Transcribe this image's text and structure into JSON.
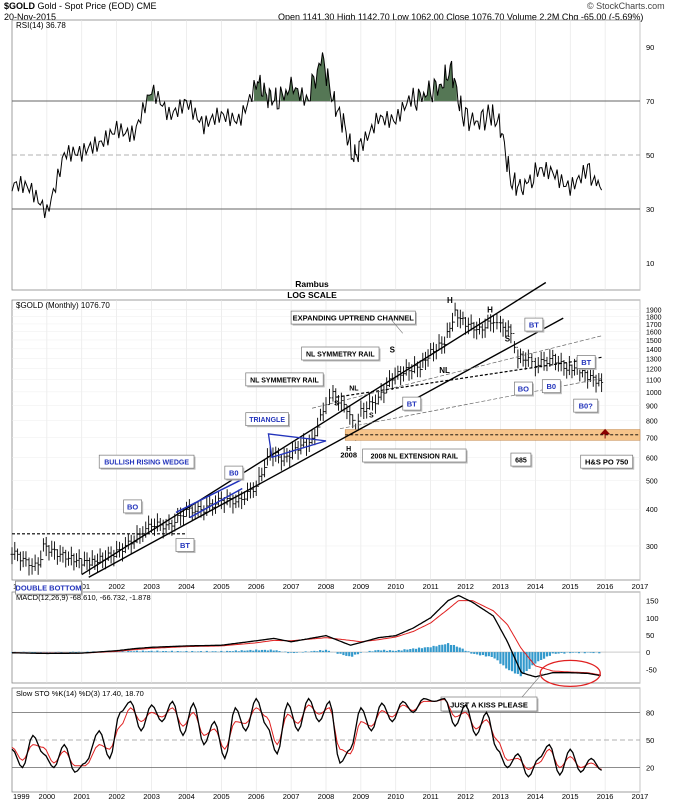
{
  "header": {
    "symbol": "$GOLD",
    "description": "Gold - Spot Price (EOD)  CME",
    "date": "20-Nov-2015",
    "quote": "Open 1141.30  High 1142.70  Low 1062.00  Close 1076.70  Volume 2.2M  Chg -65.00 (-5.69%)",
    "quote_arrow": "▼",
    "brand": "© StockCharts.com"
  },
  "colors": {
    "price_up": "#000000",
    "rsi_fill": "#557755",
    "macd_line": "#000000",
    "signal_line": "#e02020",
    "histogram": "#3399cc",
    "annotation_blue": "#2233bb",
    "target_zone": "#f6c48a",
    "target_arrow": "#8b0000"
  },
  "chart_data": [
    {
      "type": "line",
      "panel": "rsi",
      "legend": "RSI(14) 36.78",
      "ylim": [
        0,
        100
      ],
      "yticks": [
        10,
        30,
        50,
        70,
        90
      ],
      "reference_lines": [
        30,
        50,
        70
      ],
      "x": [
        1999.0,
        1999.5,
        2000.0,
        2000.5,
        2001.0,
        2001.5,
        2002.0,
        2002.5,
        2003.0,
        2003.5,
        2004.0,
        2004.5,
        2005.0,
        2005.5,
        2006.0,
        2006.3,
        2006.6,
        2007.0,
        2007.5,
        2007.9,
        2008.2,
        2008.5,
        2008.8,
        2009.0,
        2009.5,
        2010.0,
        2010.5,
        2010.9,
        2011.3,
        2011.6,
        2011.9,
        2012.3,
        2012.7,
        2013.0,
        2013.3,
        2013.6,
        2014.0,
        2014.5,
        2015.0,
        2015.5,
        2015.9
      ],
      "series": [
        {
          "name": "RSI(14)",
          "values": [
            38,
            36,
            30,
            52,
            49,
            53,
            62,
            58,
            72,
            65,
            72,
            60,
            63,
            64,
            78,
            72,
            70,
            75,
            72,
            86,
            70,
            62,
            48,
            54,
            66,
            62,
            70,
            73,
            76,
            82,
            65,
            62,
            65,
            61,
            40,
            38,
            42,
            44,
            40,
            44,
            37
          ]
        }
      ]
    },
    {
      "type": "line",
      "panel": "price",
      "legend": "$GOLD (Monthly) 1076.70",
      "title": "Rambus",
      "subtitle": "LOG SCALE",
      "scale": "log",
      "ylim": [
        230,
        2050
      ],
      "yticks": [
        300,
        400,
        500,
        600,
        700,
        800,
        900,
        1000,
        1100,
        1200,
        1300,
        1400,
        1500,
        1600,
        1700,
        1800,
        1900
      ],
      "x_tick_labels": [
        "1999",
        "2000",
        "2001",
        "2002",
        "2003",
        "2004",
        "2005",
        "2006",
        "2007",
        "2008",
        "2009",
        "2010",
        "2011",
        "2012",
        "2013",
        "2014",
        "2015",
        "2016",
        "2017"
      ],
      "x": [
        1999.0,
        1999.4,
        1999.75,
        1999.9,
        2000.3,
        2000.7,
        2001.0,
        2001.3,
        2001.6,
        2002.0,
        2002.5,
        2003.0,
        2003.5,
        2004.0,
        2004.5,
        2005.0,
        2005.5,
        2006.0,
        2006.4,
        2006.8,
        2007.2,
        2007.6,
        2008.0,
        2008.2,
        2008.6,
        2008.85,
        2009.0,
        2009.5,
        2009.9,
        2010.3,
        2010.7,
        2011.0,
        2011.4,
        2011.7,
        2012.0,
        2012.4,
        2012.8,
        2013.0,
        2013.3,
        2013.5,
        2013.8,
        2014.0,
        2014.5,
        2014.9,
        2015.2,
        2015.5,
        2015.9
      ],
      "series": [
        {
          "name": "$GOLD",
          "values": [
            288,
            265,
            255,
            300,
            283,
            272,
            265,
            265,
            272,
            285,
            315,
            355,
            350,
            395,
            400,
            430,
            425,
            480,
            620,
            590,
            650,
            680,
            920,
            980,
            880,
            740,
            860,
            950,
            1120,
            1180,
            1220,
            1360,
            1480,
            1850,
            1710,
            1620,
            1750,
            1680,
            1600,
            1320,
            1280,
            1240,
            1300,
            1200,
            1210,
            1130,
            1076
          ]
        }
      ],
      "annotations": [
        "EXPANDING UPTREND CHANNEL",
        "NL SYMMETRY RAIL",
        "NL SYMMETRY RAIL",
        "TRIANGLE",
        "BULLISH RISING WEDGE",
        "BO",
        "B0",
        "BT",
        "BT",
        "BT",
        "BO",
        "B0",
        "BT",
        "B0?",
        "DOUBLE BOTTOM",
        "H",
        "H",
        "S",
        "S",
        "S",
        "NL",
        "NL",
        "S",
        "H",
        "2008",
        "2008 NL EXTENSION RAIL",
        "685",
        "H&S PO 750"
      ]
    },
    {
      "type": "line",
      "panel": "macd",
      "legend": "MACD(12,26,9) -68.610, -66.732, -1.878",
      "yticks": [
        -50,
        0,
        50,
        100,
        150
      ],
      "x": [
        1999.0,
        2000.0,
        2001.0,
        2002.0,
        2002.5,
        2003.0,
        2004.0,
        2005.0,
        2006.0,
        2006.5,
        2007.0,
        2008.0,
        2008.7,
        2009.0,
        2009.5,
        2010.0,
        2010.5,
        2011.0,
        2011.5,
        2011.8,
        2012.2,
        2012.8,
        2013.2,
        2013.6,
        2014.0,
        2014.5,
        2015.0,
        2015.5,
        2015.9
      ],
      "series": [
        {
          "name": "MACD",
          "values": [
            -2,
            -4,
            -3,
            4,
            10,
            14,
            18,
            20,
            33,
            40,
            30,
            48,
            20,
            28,
            42,
            48,
            70,
            100,
            150,
            165,
            145,
            105,
            30,
            -60,
            -72,
            -60,
            -60,
            -62,
            -69
          ]
        },
        {
          "name": "Signal",
          "values": [
            -2,
            -3,
            -3,
            2,
            7,
            11,
            16,
            18,
            27,
            34,
            33,
            42,
            34,
            30,
            36,
            44,
            60,
            85,
            125,
            150,
            150,
            120,
            80,
            10,
            -40,
            -55,
            -58,
            -60,
            -67
          ]
        }
      ],
      "histogram": [
        0,
        -1,
        0,
        2,
        3,
        3,
        2,
        2,
        6,
        6,
        -3,
        6,
        -14,
        -2,
        6,
        4,
        10,
        15,
        25,
        15,
        -5,
        -15,
        -50,
        -70,
        -32,
        -5,
        -2,
        -2,
        -2
      ],
      "callout": "JUST A KISS PLEASE"
    },
    {
      "type": "line",
      "panel": "stochastic",
      "legend": "Slow STO %K(14) %D(3) 17.40, 18.70",
      "ylim": [
        0,
        100
      ],
      "yticks": [
        20,
        50,
        80
      ],
      "reference_lines": [
        20,
        50,
        80
      ],
      "x_tick_labels": [
        "1999",
        "2000",
        "2001",
        "2002",
        "2003",
        "2004",
        "2005",
        "2006",
        "2007",
        "2008",
        "2009",
        "2010",
        "2011",
        "2012",
        "2013",
        "2014",
        "2015",
        "2016",
        "2017"
      ],
      "x": [
        1999.0,
        1999.3,
        1999.6,
        1999.9,
        2000.2,
        2000.5,
        2000.8,
        2001.1,
        2001.5,
        2001.8,
        2002.1,
        2002.4,
        2002.7,
        2003.0,
        2003.3,
        2003.6,
        2003.9,
        2004.2,
        2004.5,
        2004.8,
        2005.1,
        2005.4,
        2005.7,
        2006.0,
        2006.3,
        2006.6,
        2006.9,
        2007.2,
        2007.5,
        2007.8,
        2008.1,
        2008.4,
        2008.7,
        2009.0,
        2009.3,
        2009.6,
        2009.9,
        2010.2,
        2010.5,
        2010.8,
        2011.1,
        2011.4,
        2011.7,
        2012.0,
        2012.3,
        2012.6,
        2012.9,
        2013.2,
        2013.5,
        2013.8,
        2014.1,
        2014.4,
        2014.7,
        2015.0,
        2015.3,
        2015.6,
        2015.9
      ],
      "series": [
        {
          "name": "%K",
          "values": [
            40,
            20,
            55,
            35,
            20,
            45,
            15,
            25,
            60,
            30,
            80,
            92,
            60,
            88,
            70,
            92,
            55,
            90,
            45,
            70,
            30,
            85,
            60,
            95,
            65,
            35,
            90,
            60,
            95,
            70,
            92,
            25,
            40,
            85,
            60,
            90,
            70,
            92,
            80,
            95,
            92,
            95,
            65,
            88,
            55,
            80,
            40,
            20,
            35,
            10,
            30,
            45,
            12,
            40,
            15,
            30,
            17
          ]
        },
        {
          "name": "%D",
          "values": [
            42,
            28,
            45,
            42,
            25,
            38,
            22,
            22,
            45,
            40,
            65,
            85,
            70,
            80,
            75,
            85,
            65,
            80,
            55,
            62,
            40,
            70,
            68,
            85,
            75,
            45,
            78,
            68,
            88,
            78,
            85,
            40,
            35,
            70,
            65,
            82,
            75,
            88,
            82,
            92,
            92,
            94,
            75,
            80,
            62,
            72,
            50,
            28,
            30,
            18,
            25,
            40,
            20,
            32,
            20,
            25,
            18
          ]
        }
      ]
    }
  ]
}
